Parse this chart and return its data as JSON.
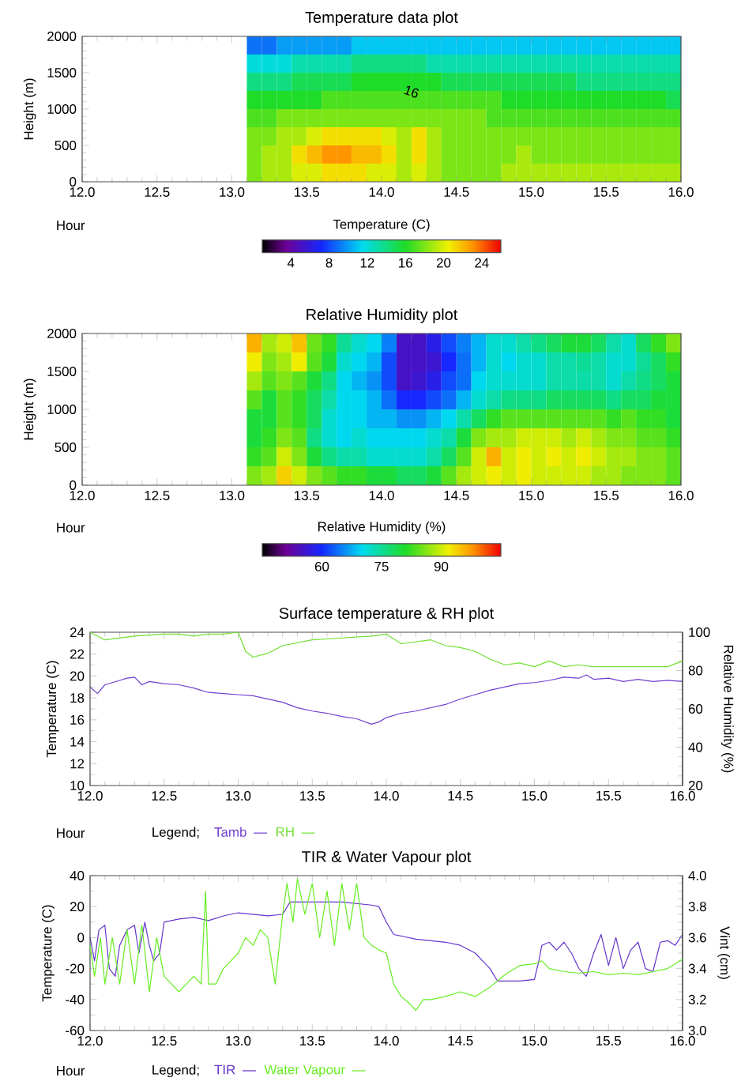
{
  "chart_data": [
    {
      "type": "heatmap",
      "title": "Temperature data plot",
      "xlabel": "Hour",
      "ylabel": "Height (m)",
      "clabel": "Temperature (C)",
      "xlim": [
        12,
        16
      ],
      "xticks": [
        {
          "value": 12,
          "label": "12.0"
        },
        12.5,
        {
          "value": 13,
          "label": "13.0"
        },
        13.5,
        {
          "value": 14,
          "label": "14.0"
        },
        14.5,
        {
          "value": 15,
          "label": "15.0"
        },
        15.5,
        {
          "value": 16,
          "label": "16.0"
        }
      ],
      "ylim": [
        0,
        2000
      ],
      "yticks": [
        0,
        500,
        1000,
        1500,
        2000
      ],
      "clim": [
        1,
        26
      ],
      "cticks": [
        4,
        8,
        12,
        16,
        20,
        24
      ],
      "annotations": [
        "16"
      ],
      "cells": [
        [
          null,
          null,
          null,
          null,
          null,
          null,
          null,
          null,
          null,
          null,
          null,
          9,
          9,
          10,
          10,
          10,
          10,
          10,
          11,
          11,
          11,
          11,
          11,
          11,
          11,
          11,
          11,
          11,
          11,
          11,
          11,
          11,
          11,
          11,
          11,
          11,
          11,
          11,
          11,
          11
        ],
        [
          null,
          null,
          null,
          null,
          null,
          null,
          null,
          null,
          null,
          null,
          null,
          12,
          12,
          12,
          13,
          13,
          13,
          13,
          14,
          14,
          14,
          14,
          14,
          13,
          13,
          13,
          13,
          13,
          13,
          13,
          13,
          13,
          13,
          13,
          13,
          13,
          13,
          13,
          13,
          13
        ],
        [
          null,
          null,
          null,
          null,
          null,
          null,
          null,
          null,
          null,
          null,
          null,
          14,
          14,
          14,
          15,
          15,
          15,
          15,
          16,
          16,
          16,
          16,
          16,
          16,
          15,
          15,
          15,
          15,
          15,
          15,
          15,
          15,
          15,
          14,
          14,
          14,
          14,
          14,
          14,
          14
        ],
        [
          null,
          null,
          null,
          null,
          null,
          null,
          null,
          null,
          null,
          null,
          null,
          16,
          16,
          16,
          16,
          16,
          17,
          17,
          17,
          17,
          17,
          17,
          17,
          17,
          17,
          17,
          17,
          17,
          16,
          16,
          16,
          16,
          16,
          16,
          16,
          16,
          16,
          16,
          16,
          15
        ],
        [
          null,
          null,
          null,
          null,
          null,
          null,
          null,
          null,
          null,
          null,
          null,
          17,
          17,
          18,
          18,
          18,
          18,
          18,
          18,
          18,
          18,
          18,
          18,
          18,
          18,
          18,
          18,
          17,
          17,
          17,
          17,
          17,
          17,
          17,
          17,
          17,
          17,
          17,
          17,
          17
        ],
        [
          null,
          null,
          null,
          null,
          null,
          null,
          null,
          null,
          null,
          null,
          null,
          18,
          18,
          19,
          19,
          20,
          21,
          21,
          21,
          21,
          20,
          19,
          21,
          19,
          18,
          18,
          18,
          18,
          18,
          18,
          18,
          18,
          18,
          18,
          18,
          18,
          18,
          18,
          18,
          18
        ],
        [
          null,
          null,
          null,
          null,
          null,
          null,
          null,
          null,
          null,
          null,
          null,
          18,
          19,
          19,
          21,
          22,
          23,
          23,
          22,
          22,
          21,
          19,
          21,
          19,
          18,
          18,
          18,
          18,
          18,
          19,
          18,
          18,
          18,
          18,
          18,
          18,
          18,
          18,
          18,
          18
        ],
        [
          null,
          null,
          null,
          null,
          null,
          null,
          null,
          null,
          null,
          null,
          null,
          18,
          19,
          19,
          20,
          20,
          21,
          21,
          21,
          20,
          20,
          19,
          20,
          19,
          18,
          18,
          18,
          18,
          19,
          19,
          19,
          19,
          19,
          19,
          19,
          19,
          19,
          19,
          19,
          19
        ]
      ]
    },
    {
      "type": "heatmap",
      "title": "Relative Humidity plot",
      "xlabel": "Hour",
      "ylabel": "Height (m)",
      "clabel": "Relative Humidity (%)",
      "xlim": [
        12,
        16
      ],
      "xticks": [
        {
          "value": 12,
          "label": "12.0"
        },
        12.5,
        {
          "value": 13,
          "label": "13.0"
        },
        13.5,
        {
          "value": 14,
          "label": "14.0"
        },
        14.5,
        {
          "value": 15,
          "label": "15.0"
        },
        15.5,
        {
          "value": 16,
          "label": "16.0"
        }
      ],
      "ylim": [
        0,
        2000
      ],
      "yticks": [
        0,
        500,
        1000,
        1500,
        2000
      ],
      "clim": [
        45,
        105
      ],
      "cticks": [
        60,
        75,
        90
      ],
      "cells": [
        [
          null,
          null,
          null,
          null,
          null,
          null,
          null,
          null,
          null,
          null,
          null,
          96,
          88,
          90,
          95,
          85,
          82,
          75,
          72,
          70,
          65,
          55,
          55,
          58,
          62,
          65,
          68,
          72,
          72,
          74,
          76,
          78,
          80,
          80,
          78,
          74,
          72,
          78,
          82,
          86
        ],
        [
          null,
          null,
          null,
          null,
          null,
          null,
          null,
          null,
          null,
          null,
          null,
          92,
          86,
          88,
          92,
          84,
          80,
          72,
          70,
          68,
          62,
          55,
          55,
          56,
          60,
          64,
          68,
          72,
          70,
          72,
          72,
          74,
          74,
          75,
          74,
          72,
          72,
          75,
          78,
          82
        ],
        [
          null,
          null,
          null,
          null,
          null,
          null,
          null,
          null,
          null,
          null,
          null,
          88,
          84,
          86,
          84,
          80,
          76,
          70,
          68,
          66,
          62,
          55,
          56,
          58,
          62,
          64,
          70,
          72,
          72,
          72,
          72,
          74,
          74,
          74,
          74,
          72,
          74,
          76,
          78,
          80
        ],
        [
          null,
          null,
          null,
          null,
          null,
          null,
          null,
          null,
          null,
          null,
          null,
          84,
          80,
          84,
          82,
          78,
          74,
          70,
          70,
          68,
          64,
          60,
          60,
          62,
          64,
          68,
          72,
          74,
          76,
          76,
          76,
          78,
          78,
          78,
          78,
          76,
          78,
          78,
          80,
          80
        ],
        [
          null,
          null,
          null,
          null,
          null,
          null,
          null,
          null,
          null,
          null,
          null,
          80,
          80,
          84,
          82,
          78,
          72,
          70,
          70,
          68,
          68,
          66,
          66,
          68,
          70,
          74,
          78,
          82,
          84,
          84,
          84,
          84,
          84,
          84,
          84,
          82,
          84,
          82,
          82,
          80
        ],
        [
          null,
          null,
          null,
          null,
          null,
          null,
          null,
          null,
          null,
          null,
          null,
          80,
          82,
          86,
          84,
          76,
          72,
          70,
          72,
          70,
          70,
          70,
          70,
          72,
          74,
          80,
          86,
          88,
          88,
          90,
          90,
          90,
          88,
          90,
          88,
          86,
          86,
          84,
          84,
          82
        ],
        [
          null,
          null,
          null,
          null,
          null,
          null,
          null,
          null,
          null,
          null,
          null,
          82,
          84,
          90,
          86,
          80,
          76,
          74,
          74,
          72,
          72,
          72,
          72,
          74,
          78,
          84,
          90,
          96,
          90,
          92,
          90,
          92,
          90,
          92,
          90,
          88,
          88,
          86,
          86,
          84
        ],
        [
          null,
          null,
          null,
          null,
          null,
          null,
          null,
          null,
          null,
          null,
          null,
          86,
          88,
          94,
          90,
          86,
          84,
          82,
          82,
          80,
          80,
          78,
          78,
          80,
          84,
          88,
          90,
          92,
          90,
          92,
          90,
          90,
          90,
          90,
          88,
          88,
          86,
          86,
          86,
          84
        ]
      ]
    },
    {
      "type": "line",
      "title": "Surface temperature & RH plot",
      "xlabel": "Hour",
      "ylabel": "Temperature (C)",
      "y2label": "Relative Humidity (%)",
      "legend_title": "Legend;",
      "legend": "bottom",
      "xlim": [
        12,
        16
      ],
      "xticks": [
        {
          "value": 12,
          "label": "12.0"
        },
        12.5,
        {
          "value": 13,
          "label": "13.0"
        },
        13.5,
        {
          "value": 14,
          "label": "14.0"
        },
        14.5,
        {
          "value": 15,
          "label": "15.0"
        },
        15.5,
        {
          "value": 16,
          "label": "16.0"
        }
      ],
      "ylim": [
        10,
        24
      ],
      "yticks": [
        10,
        12,
        14,
        16,
        18,
        20,
        22,
        24
      ],
      "y2lim": [
        20,
        100
      ],
      "y2ticks": [
        20,
        40,
        60,
        80,
        100
      ],
      "series": [
        {
          "name": "Tamb",
          "color": "#7040d0",
          "x": [
            12.0,
            12.05,
            12.1,
            12.2,
            12.25,
            12.3,
            12.35,
            12.4,
            12.5,
            12.6,
            12.7,
            12.8,
            12.9,
            13.0,
            13.1,
            13.2,
            13.3,
            13.4,
            13.5,
            13.6,
            13.7,
            13.8,
            13.9,
            13.95,
            14.0,
            14.1,
            14.2,
            14.3,
            14.4,
            14.5,
            14.6,
            14.7,
            14.8,
            14.9,
            15.0,
            15.1,
            15.2,
            15.3,
            15.35,
            15.4,
            15.5,
            15.6,
            15.7,
            15.8,
            15.9,
            16.0
          ],
          "values": [
            19.0,
            18.4,
            19.2,
            19.6,
            19.8,
            19.9,
            19.2,
            19.5,
            19.3,
            19.2,
            18.9,
            18.5,
            18.4,
            18.3,
            18.2,
            17.9,
            17.6,
            17.1,
            16.8,
            16.6,
            16.3,
            16.1,
            15.6,
            15.8,
            16.2,
            16.6,
            16.8,
            17.1,
            17.4,
            17.9,
            18.3,
            18.7,
            19.0,
            19.3,
            19.4,
            19.6,
            19.9,
            19.8,
            20.1,
            19.7,
            19.8,
            19.5,
            19.7,
            19.5,
            19.6,
            19.5
          ]
        },
        {
          "name": "RH",
          "color": "#70e030",
          "axis": "y2",
          "x": [
            12.0,
            12.1,
            12.3,
            12.5,
            12.6,
            12.7,
            12.8,
            12.9,
            13.0,
            13.05,
            13.1,
            13.2,
            13.3,
            13.5,
            13.7,
            13.9,
            14.0,
            14.1,
            14.3,
            14.4,
            14.5,
            14.6,
            14.7,
            14.8,
            14.9,
            15.0,
            15.1,
            15.2,
            15.3,
            15.4,
            15.5,
            15.6,
            15.7,
            15.8,
            15.9,
            16.0
          ],
          "values": [
            100,
            96,
            98,
            99,
            99,
            98,
            99,
            99,
            100,
            90,
            87,
            89,
            93,
            96,
            97,
            98,
            99,
            94,
            96,
            93,
            92,
            90,
            86,
            83,
            84,
            82,
            85,
            82,
            83,
            82,
            82,
            82,
            82,
            82,
            82,
            85
          ]
        }
      ]
    },
    {
      "type": "line",
      "title": "TIR & Water Vapour plot",
      "xlabel": "Hour",
      "ylabel": "Temperature (C)",
      "y2label": "Vint (cm)",
      "legend_title": "Legend;",
      "legend": "bottom",
      "xlim": [
        12,
        16
      ],
      "xticks": [
        {
          "value": 12,
          "label": "12.0"
        },
        12.5,
        {
          "value": 13,
          "label": "13.0"
        },
        13.5,
        {
          "value": 14,
          "label": "14.0"
        },
        14.5,
        {
          "value": 15,
          "label": "15.0"
        },
        15.5,
        {
          "value": 16,
          "label": "16.0"
        }
      ],
      "ylim": [
        -60,
        40
      ],
      "yticks": [
        -60,
        -40,
        -20,
        0,
        20,
        40
      ],
      "y2lim": [
        3,
        4
      ],
      "y2ticks": [
        {
          "value": 3,
          "label": "3.0"
        },
        3.2,
        3.4,
        3.6,
        3.8,
        {
          "value": 4,
          "label": "4.0"
        }
      ],
      "series": [
        {
          "name": "TIR",
          "color": "#6633cc",
          "x": [
            12.0,
            12.03,
            12.06,
            12.1,
            12.13,
            12.17,
            12.2,
            12.25,
            12.3,
            12.33,
            12.37,
            12.4,
            12.43,
            12.47,
            12.5,
            12.6,
            12.7,
            12.8,
            12.9,
            13.0,
            13.1,
            13.2,
            13.3,
            13.35,
            13.5,
            13.7,
            13.9,
            13.95,
            14.0,
            14.05,
            14.2,
            14.4,
            14.5,
            14.6,
            14.65,
            14.7,
            14.75,
            14.9,
            15.0,
            15.03,
            15.05,
            15.1,
            15.15,
            15.2,
            15.25,
            15.3,
            15.35,
            15.4,
            15.45,
            15.5,
            15.55,
            15.6,
            15.65,
            15.7,
            15.75,
            15.8,
            15.85,
            15.9,
            15.95,
            16.0
          ],
          "values": [
            0,
            -15,
            5,
            8,
            -20,
            -25,
            -5,
            5,
            8,
            -10,
            10,
            -5,
            -15,
            -10,
            10,
            12,
            13,
            11,
            14,
            16,
            15,
            14,
            15,
            23,
            23,
            23,
            21,
            20,
            10,
            2,
            -1,
            -3,
            -5,
            -10,
            -15,
            -20,
            -28,
            -28,
            -27,
            -15,
            -5,
            -3,
            -8,
            -3,
            -10,
            -20,
            -25,
            -10,
            2,
            -18,
            0,
            -20,
            -8,
            -3,
            -20,
            -22,
            -3,
            -2,
            -5,
            2
          ]
        },
        {
          "name": "Water Vapour",
          "color": "#66ee22",
          "axis": "y2",
          "x": [
            12.0,
            12.03,
            12.07,
            12.1,
            12.15,
            12.2,
            12.25,
            12.3,
            12.35,
            12.4,
            12.45,
            12.5,
            12.55,
            12.6,
            12.65,
            12.7,
            12.75,
            12.78,
            12.8,
            12.85,
            12.9,
            12.95,
            13.0,
            13.05,
            13.1,
            13.15,
            13.2,
            13.25,
            13.3,
            13.33,
            13.37,
            13.4,
            13.45,
            13.5,
            13.55,
            13.6,
            13.65,
            13.7,
            13.75,
            13.8,
            13.85,
            13.9,
            13.95,
            14.0,
            14.05,
            14.1,
            14.15,
            14.2,
            14.25,
            14.3,
            14.4,
            14.5,
            14.6,
            14.7,
            14.8,
            14.9,
            15.0,
            15.05,
            15.1,
            15.2,
            15.3,
            15.4,
            15.5,
            15.6,
            15.7,
            15.8,
            15.9,
            16.0
          ],
          "values": [
            3.55,
            3.35,
            3.6,
            3.3,
            3.6,
            3.3,
            3.65,
            3.3,
            3.68,
            3.25,
            3.6,
            3.35,
            3.3,
            3.25,
            3.3,
            3.35,
            3.3,
            3.9,
            3.3,
            3.3,
            3.4,
            3.45,
            3.5,
            3.6,
            3.55,
            3.65,
            3.6,
            3.3,
            3.75,
            3.95,
            3.7,
            3.98,
            3.75,
            3.95,
            3.6,
            3.9,
            3.55,
            3.95,
            3.65,
            3.95,
            3.6,
            3.55,
            3.52,
            3.5,
            3.3,
            3.22,
            3.18,
            3.13,
            3.2,
            3.2,
            3.22,
            3.25,
            3.22,
            3.28,
            3.36,
            3.42,
            3.43,
            3.45,
            3.4,
            3.38,
            3.37,
            3.38,
            3.36,
            3.37,
            3.36,
            3.38,
            3.4,
            3.46
          ]
        }
      ]
    }
  ]
}
